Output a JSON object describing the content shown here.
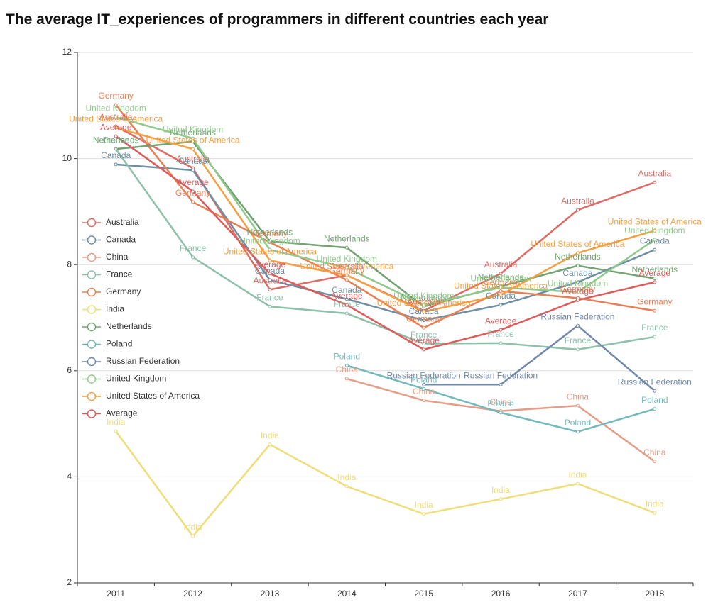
{
  "chart_data": {
    "type": "line",
    "title": "The average IT_experiences of programmers in different countries each year",
    "categories": [
      "2011",
      "2012",
      "2013",
      "2014",
      "2015",
      "2016",
      "2017",
      "2018"
    ],
    "ylim": [
      2,
      12
    ],
    "yticks": [
      2,
      4,
      6,
      8,
      10,
      12
    ],
    "grid": true,
    "legend": "left",
    "series": [
      {
        "name": "Australia",
        "color": "#dd6b66",
        "values": [
          10.61,
          9.82,
          7.53,
          7.8,
          7.13,
          7.83,
          9.03,
          9.55
        ]
      },
      {
        "name": "Canada",
        "color": "#6e8fa3",
        "values": [
          9.89,
          9.78,
          7.71,
          7.35,
          6.95,
          7.24,
          7.67,
          8.28
        ]
      },
      {
        "name": "China",
        "color": "#e69d87",
        "values": [
          null,
          null,
          null,
          5.85,
          5.44,
          5.24,
          5.34,
          4.29
        ]
      },
      {
        "name": "France",
        "color": "#8dc1a9",
        "values": [
          10.18,
          8.14,
          7.21,
          7.08,
          6.51,
          6.52,
          6.4,
          6.64
        ]
      },
      {
        "name": "Germany",
        "color": "#ea7e53",
        "values": [
          11.01,
          9.18,
          8.42,
          7.71,
          6.81,
          7.5,
          7.37,
          7.13
        ]
      },
      {
        "name": "India",
        "color": "#eedd78",
        "values": [
          4.86,
          2.88,
          4.61,
          3.82,
          3.3,
          3.58,
          3.87,
          3.32
        ]
      },
      {
        "name": "Netherlands",
        "color": "#73a373",
        "values": [
          10.18,
          10.32,
          8.44,
          8.32,
          7.21,
          7.59,
          7.98,
          7.74
        ]
      },
      {
        "name": "Poland",
        "color": "#73b9bc",
        "values": [
          null,
          null,
          null,
          6.1,
          5.66,
          5.21,
          4.85,
          5.28
        ]
      },
      {
        "name": "Russian Federation",
        "color": "#7289ab",
        "values": [
          null,
          null,
          null,
          null,
          5.74,
          5.74,
          6.85,
          5.62
        ]
      },
      {
        "name": "United Kingdom",
        "color": "#91ca8c",
        "values": [
          10.78,
          10.38,
          8.28,
          7.94,
          7.24,
          7.57,
          7.48,
          8.47
        ]
      },
      {
        "name": "United States of America",
        "color": "#f49f42",
        "values": [
          10.58,
          10.18,
          8.08,
          7.8,
          7.11,
          7.43,
          8.22,
          8.64
        ]
      },
      {
        "name": "Average",
        "color": "#dd5b5b",
        "values": [
          10.42,
          9.38,
          7.83,
          7.24,
          6.4,
          6.77,
          7.33,
          7.67
        ]
      }
    ]
  }
}
